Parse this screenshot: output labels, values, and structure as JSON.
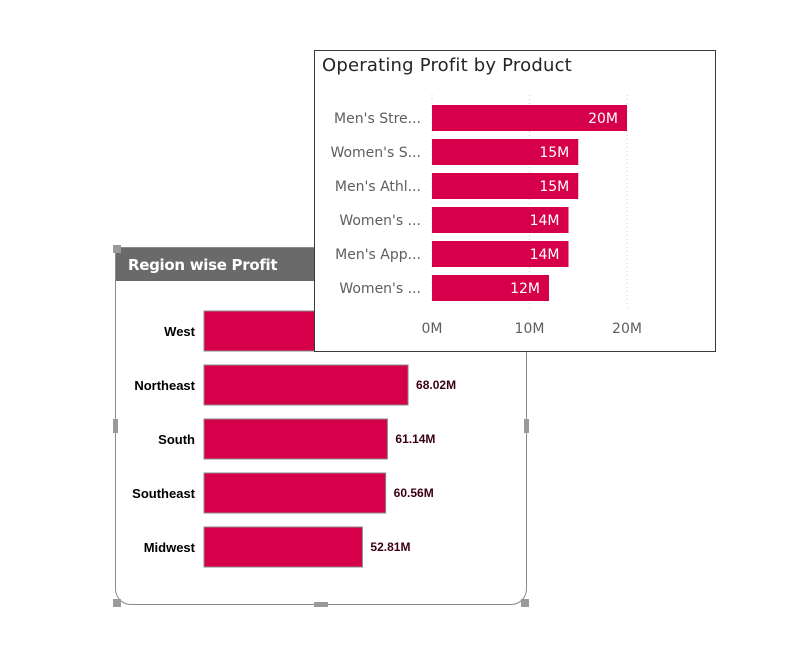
{
  "colors": {
    "bar": "#D6004A",
    "header_bg": "#6A6A6A",
    "gridline": "#D0D0D0",
    "axis_text": "#605E5C",
    "region_label": "#000000",
    "region_value": "#3A0012"
  },
  "chart_data": [
    {
      "type": "bar",
      "orientation": "horizontal",
      "title": "Region wise Profit",
      "categories": [
        "West",
        "Northeast",
        "South",
        "Southeast",
        "Midwest"
      ],
      "values": [
        68.02,
        68.02,
        61.14,
        60.56,
        52.81
      ],
      "data_labels": [
        "",
        "68.02M",
        "61.14M",
        "60.56M",
        "52.81M"
      ],
      "unit": "M",
      "xlim": [
        0,
        100
      ],
      "grid": false
    },
    {
      "type": "bar",
      "orientation": "horizontal",
      "title": "Operating Profit by Product",
      "categories": [
        "Men's Stre...",
        "Women's S...",
        "Men's Athl...",
        "Women's ...",
        "Men's App...",
        "Women's ..."
      ],
      "values": [
        20,
        15,
        15,
        14,
        14,
        12
      ],
      "data_labels": [
        "20M",
        "15M",
        "15M",
        "14M",
        "14M",
        "12M"
      ],
      "x_ticks": [
        "0M",
        "10M",
        "20M"
      ],
      "x_tick_values": [
        0,
        10,
        20
      ],
      "xlim": [
        0,
        21.5
      ],
      "grid": true
    }
  ]
}
